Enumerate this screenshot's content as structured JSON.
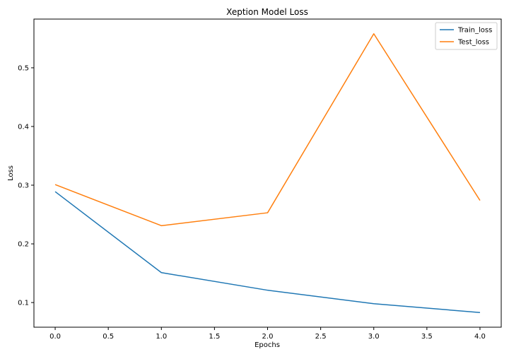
{
  "chart_data": {
    "type": "line",
    "title": "Xeption Model Loss",
    "xlabel": "Epochs",
    "ylabel": "Loss",
    "x": [
      0,
      1,
      2,
      3,
      4
    ],
    "series": [
      {
        "name": "Train_loss",
        "color": "#1f77b4",
        "values": [
          0.289,
          0.151,
          0.121,
          0.098,
          0.083
        ]
      },
      {
        "name": "Test_loss",
        "color": "#ff7f0e",
        "values": [
          0.301,
          0.231,
          0.253,
          0.558,
          0.274
        ]
      }
    ],
    "xlim": [
      -0.2,
      4.2
    ],
    "ylim": [
      0.058,
      0.583
    ],
    "xticks": [
      0.0,
      0.5,
      1.0,
      1.5,
      2.0,
      2.5,
      3.0,
      3.5,
      4.0
    ],
    "xtick_labels": [
      "0.0",
      "0.5",
      "1.0",
      "1.5",
      "2.0",
      "2.5",
      "3.0",
      "3.5",
      "4.0"
    ],
    "yticks": [
      0.1,
      0.2,
      0.3,
      0.4,
      0.5
    ],
    "ytick_labels": [
      "0.1",
      "0.2",
      "0.3",
      "0.4",
      "0.5"
    ],
    "grid": false,
    "legend_position": "top-right"
  }
}
